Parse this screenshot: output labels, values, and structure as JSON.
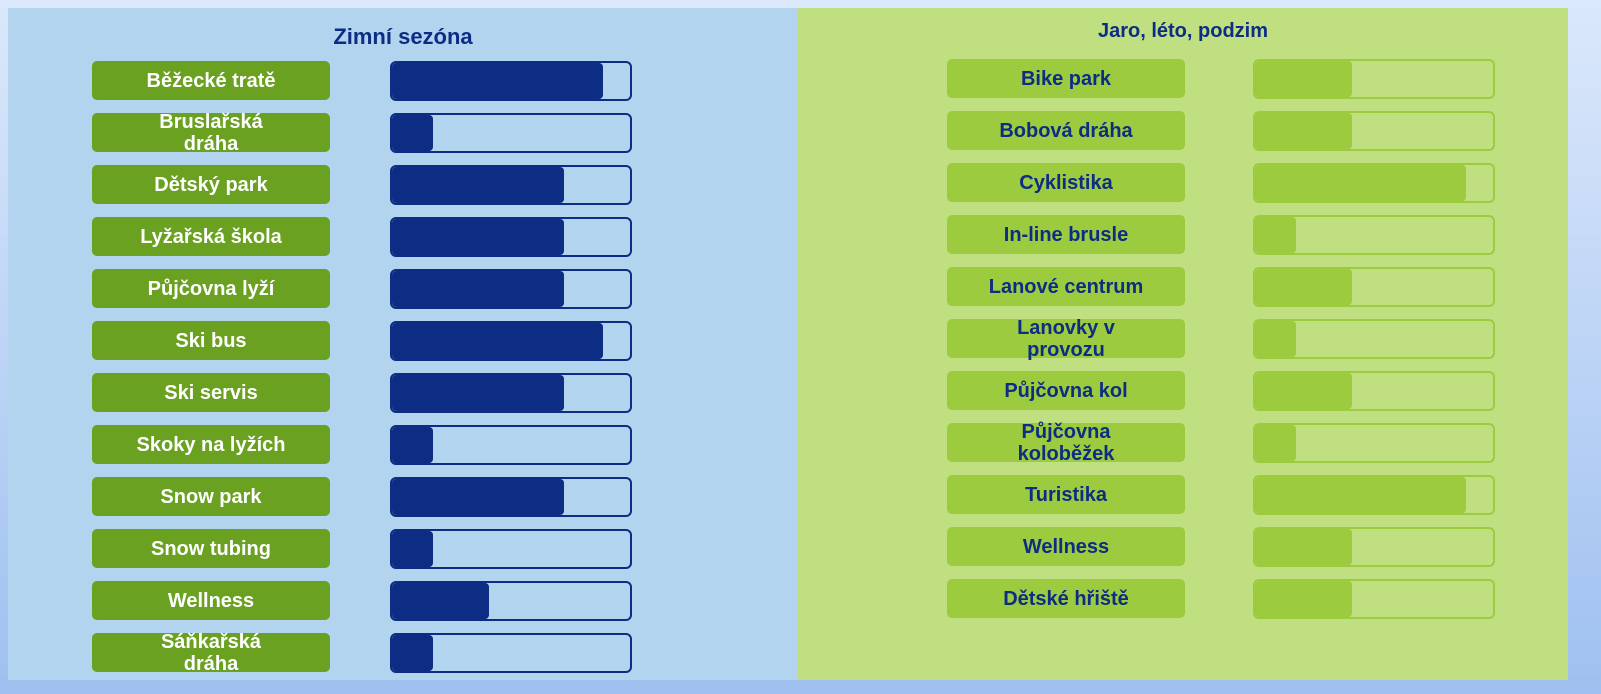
{
  "chart_data": [
    {
      "type": "bar",
      "title": "Zimní sezóna",
      "categories": [
        "Běžecké tratě",
        "Bruslařská dráha",
        "Dětský park",
        "Lyžařská škola",
        "Půjčovna lyží",
        "Ski bus",
        "Ski servis",
        "Skoky na lyžích",
        "Snow park",
        "Snow tubing",
        "Wellness",
        "Sáňkařská dráha"
      ],
      "values": [
        87,
        17,
        71,
        71,
        71,
        87,
        71,
        17,
        71,
        17,
        40,
        17
      ],
      "xlim": [
        0,
        100
      ],
      "color": "#0c2d83",
      "label_color": "#6aa121",
      "label_text_color": "#ffffff",
      "background": "#b3d4ef"
    },
    {
      "type": "bar",
      "title": "Jaro, léto, podzim",
      "categories": [
        "Bike park",
        "Bobová dráha",
        "Cyklistika",
        "In-line brusle",
        "Lanové centrum",
        "Lanovky v provozu",
        "Půjčovna kol",
        "Půjčovna koloběžek",
        "Turistika",
        "Wellness",
        "Dětské hřiště"
      ],
      "values": [
        40,
        40,
        87,
        17,
        40,
        17,
        40,
        17,
        87,
        40,
        40
      ],
      "xlim": [
        0,
        100
      ],
      "color": "#9dcb3f",
      "label_color": "#9dcb3f",
      "label_text_color": "#0c2d83",
      "background": "#bfdf80"
    }
  ]
}
